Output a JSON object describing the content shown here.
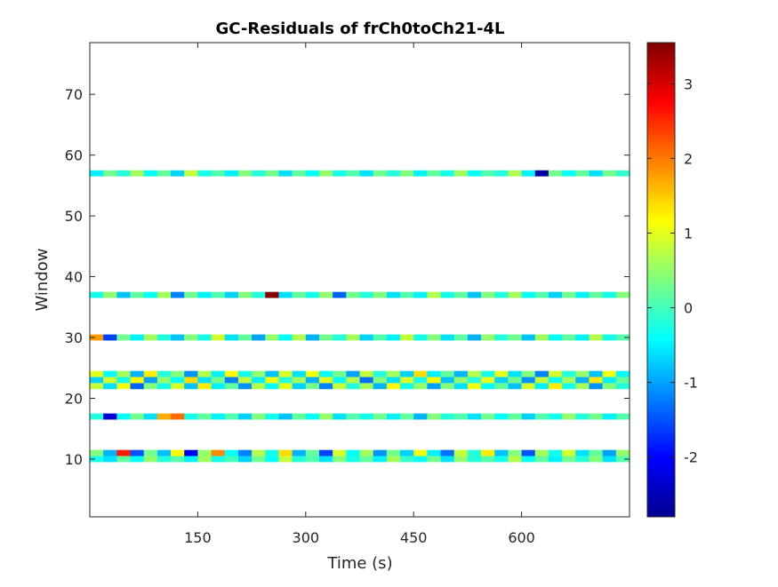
{
  "chart_data": {
    "type": "heatmap",
    "title": "GC-Residuals of frCh0toCh21-4L",
    "xlabel": "Time (s)",
    "ylabel": "Window",
    "xlim": [
      0,
      750
    ],
    "ylim": [
      0.5,
      78.5
    ],
    "xticks": [
      150,
      300,
      450,
      600
    ],
    "xtick_labels": [
      "150",
      "300",
      "450",
      "600"
    ],
    "yticks": [
      10,
      20,
      30,
      40,
      50,
      60,
      70
    ],
    "ytick_labels": [
      "10",
      "20",
      "30",
      "40",
      "50",
      "60",
      "70"
    ],
    "colormap": "jet",
    "colorbar": {
      "min": -2.8,
      "max": 3.55,
      "ticks": [
        -2,
        -1,
        0,
        1,
        2,
        3
      ],
      "tick_labels": [
        "-2",
        "-1",
        "0",
        "1",
        "2",
        "3"
      ]
    },
    "rows": [
      {
        "window": 10,
        "values": [
          -0.3,
          -0.6,
          0.2,
          -0.4,
          0.5,
          -0.2,
          0.1,
          -0.5,
          0.6,
          -0.3,
          0.0,
          -0.7,
          0.3,
          -0.4,
          0.8,
          -0.2,
          0.1,
          -0.6,
          0.4,
          -0.3,
          0.2,
          -0.5,
          0.6,
          -0.1,
          -0.4,
          0.3,
          -0.6,
          0.5,
          -0.2,
          0.1,
          -0.3,
          0.7,
          -0.4,
          0.2,
          -0.5,
          0.3,
          -0.2,
          0.4,
          -0.6,
          0.1
        ]
      },
      {
        "window": 11,
        "values": [
          0.4,
          -0.9,
          2.6,
          -1.5,
          0.3,
          -0.8,
          1.2,
          -2.1,
          0.5,
          1.9,
          -0.4,
          -1.2,
          0.7,
          -0.3,
          1.4,
          -0.9,
          0.2,
          -1.6,
          0.9,
          -0.4,
          0.6,
          -1.1,
          0.3,
          -0.7,
          1.1,
          -0.5,
          -1.3,
          0.8,
          -0.2,
          1.3,
          -0.8,
          0.4,
          -1.5,
          0.6,
          -0.3,
          0.9,
          -0.6,
          0.2,
          -1.0,
          0.5
        ]
      },
      {
        "window": 17,
        "values": [
          -0.2,
          -2.3,
          -0.4,
          0.3,
          -0.6,
          1.7,
          2.1,
          -0.3,
          0.2,
          -0.5,
          0.1,
          -0.7,
          0.4,
          -0.3,
          -0.8,
          0.2,
          -0.4,
          0.5,
          -0.6,
          0.1,
          -0.3,
          0.3,
          -0.5,
          0.2,
          -0.9,
          0.4,
          -0.2,
          0.1,
          -0.6,
          0.3,
          -0.4,
          0.2,
          -0.7,
          0.1,
          -0.3,
          0.5,
          -0.2,
          0.3,
          -0.5,
          0.1
        ]
      },
      {
        "window": 22,
        "values": [
          0.8,
          -0.6,
          1.1,
          -1.4,
          0.4,
          -0.3,
          0.9,
          -0.8,
          1.3,
          -0.5,
          0.2,
          -1.1,
          0.7,
          -0.4,
          1.0,
          -0.7,
          0.3,
          -1.2,
          0.8,
          -0.2,
          0.6,
          -0.9,
          1.2,
          -0.3,
          0.5,
          -1.0,
          0.4,
          -0.6,
          1.1,
          -0.4,
          0.2,
          -0.8,
          0.9,
          -0.5,
          1.3,
          -0.3,
          0.6,
          -1.1,
          0.4,
          -0.2
        ]
      },
      {
        "window": 23,
        "values": [
          -0.7,
          0.9,
          -0.3,
          1.2,
          -1.0,
          0.5,
          -0.4,
          1.4,
          -0.6,
          0.3,
          -1.2,
          0.8,
          -0.5,
          1.1,
          -0.2,
          0.6,
          -0.9,
          1.0,
          -0.4,
          0.7,
          -1.3,
          0.4,
          -0.6,
          0.9,
          -0.3,
          1.2,
          -0.8,
          0.5,
          -0.2,
          1.0,
          -0.7,
          0.3,
          -1.1,
          0.8,
          -0.4,
          0.6,
          -0.9,
          1.3,
          -0.5,
          0.2
        ]
      },
      {
        "window": 24,
        "values": [
          1.0,
          -0.4,
          0.6,
          -0.9,
          1.3,
          -0.2,
          0.4,
          -1.1,
          0.7,
          -0.5,
          1.2,
          -0.3,
          0.5,
          -0.8,
          0.9,
          -0.6,
          1.1,
          -0.4,
          0.3,
          -1.0,
          0.8,
          -0.2,
          0.6,
          -0.7,
          1.4,
          -0.5,
          0.2,
          -0.9,
          0.7,
          -0.3,
          1.0,
          -0.6,
          0.4,
          -1.2,
          0.9,
          -0.2,
          0.5,
          -0.8,
          1.1,
          -0.4
        ]
      },
      {
        "window": 30,
        "values": [
          1.8,
          -1.6,
          0.3,
          -0.5,
          0.6,
          -0.2,
          -0.8,
          0.4,
          -0.3,
          0.9,
          -0.6,
          0.2,
          -1.0,
          0.5,
          -0.4,
          0.7,
          -0.9,
          0.3,
          -0.2,
          0.6,
          -0.7,
          0.1,
          -0.5,
          0.8,
          -0.3,
          0.4,
          -0.6,
          0.2,
          -0.9,
          0.5,
          -0.2,
          0.3,
          -0.8,
          0.6,
          -0.4,
          0.2,
          -0.5,
          0.7,
          -0.3,
          0.1
        ]
      },
      {
        "window": 37,
        "values": [
          -0.3,
          0.5,
          -0.8,
          0.2,
          -0.4,
          0.6,
          -1.2,
          0.3,
          -0.5,
          0.1,
          -0.7,
          0.4,
          -0.2,
          3.5,
          -0.6,
          0.2,
          -0.3,
          0.5,
          -1.4,
          0.3,
          -0.2,
          0.4,
          -0.6,
          0.1,
          -0.5,
          0.7,
          -0.3,
          0.2,
          -0.8,
          0.4,
          -0.2,
          0.6,
          -0.4,
          0.1,
          -0.7,
          0.3,
          -0.5,
          0.2,
          -0.3,
          0.4
        ]
      },
      {
        "window": 57,
        "values": [
          -0.5,
          0.3,
          -0.2,
          0.6,
          -0.4,
          0.2,
          -0.7,
          0.8,
          -0.3,
          0.1,
          -0.5,
          0.4,
          -0.2,
          0.3,
          -0.6,
          0.2,
          -0.4,
          0.5,
          -0.3,
          0.1,
          -0.6,
          0.3,
          -0.2,
          0.4,
          -0.5,
          0.2,
          -0.3,
          0.6,
          -0.4,
          0.1,
          -0.2,
          0.7,
          -0.5,
          -2.6,
          0.3,
          -0.4,
          0.2,
          -0.6,
          0.3,
          -0.1
        ]
      }
    ]
  }
}
